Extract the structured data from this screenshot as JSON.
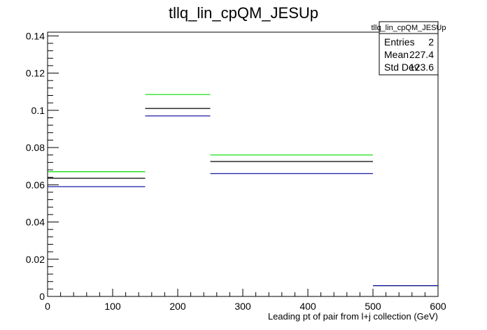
{
  "chart_data": {
    "type": "histogram",
    "title": "tllq_lin_cpQM_JESUp",
    "xlabel": "Leading pt of pair from l+j collection (GeV)",
    "ylabel": "",
    "xlim": [
      0,
      600
    ],
    "ylim": [
      0,
      0.142
    ],
    "bin_edges": [
      0,
      150,
      250,
      500,
      600
    ],
    "x_ticks": [
      0,
      100,
      200,
      300,
      400,
      500,
      600
    ],
    "x_tick_labels": [
      "0",
      "100",
      "200",
      "300",
      "400",
      "500",
      "600"
    ],
    "y_ticks": [
      0,
      0.02,
      0.04,
      0.06,
      0.08,
      0.1,
      0.12,
      0.14
    ],
    "y_tick_labels": [
      "0",
      "0.02",
      "0.04",
      "0.06",
      "0.08",
      "0.1",
      "0.12",
      "0.14"
    ],
    "grid": false,
    "series": [
      {
        "color": "#00dd00",
        "values": [
          0.067,
          0.1085,
          0.076,
          0.0058
        ]
      },
      {
        "color": "#000000",
        "values": [
          0.0635,
          0.101,
          0.0725,
          0.0058
        ]
      },
      {
        "color": "#000099",
        "values": [
          0.059,
          0.097,
          0.066,
          0.0058
        ]
      }
    ],
    "stats_box": {
      "title": "tllq_lin_cpQM_JESUp",
      "rows": [
        {
          "label": "Entries",
          "value": "2"
        },
        {
          "label": "Mean",
          "value": "227.4"
        },
        {
          "label": "Std Dev",
          "value": "123.6"
        }
      ]
    }
  }
}
